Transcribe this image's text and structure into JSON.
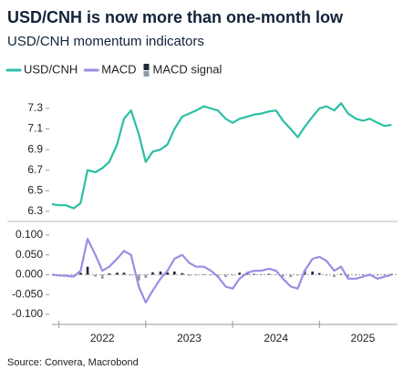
{
  "chart_data": {
    "type": "line",
    "title": "USD/CNH is now more than one-month low",
    "subtitle": "USD/CNH momentum indicators",
    "source": "Source: Convera, Macrobond",
    "x": [
      2021.92,
      2022.0,
      2022.08,
      2022.17,
      2022.25,
      2022.33,
      2022.42,
      2022.5,
      2022.58,
      2022.67,
      2022.75,
      2022.83,
      2022.92,
      2023.0,
      2023.08,
      2023.17,
      2023.25,
      2023.33,
      2023.42,
      2023.5,
      2023.58,
      2023.67,
      2023.75,
      2023.83,
      2023.92,
      2024.0,
      2024.08,
      2024.17,
      2024.25,
      2024.33,
      2024.42,
      2024.5,
      2024.58,
      2024.67,
      2024.75,
      2024.83,
      2024.92,
      2025.0,
      2025.08,
      2025.17,
      2025.25,
      2025.33,
      2025.42,
      2025.5,
      2025.58,
      2025.67,
      2025.75,
      2025.83
    ],
    "xlim": [
      2021.92,
      2025.9
    ],
    "xticks": [
      {
        "value": 2022.5,
        "label": "2022"
      },
      {
        "value": 2023.5,
        "label": "2023"
      },
      {
        "value": 2024.5,
        "label": "2024"
      },
      {
        "value": 2025.5,
        "label": "2025"
      }
    ],
    "xtick_marks": [
      2022,
      2023,
      2024,
      2025
    ],
    "ylim": [
      6.25,
      7.45
    ],
    "yticks": [
      6.3,
      6.5,
      6.7,
      6.9,
      7.1,
      7.3
    ],
    "y2lim": [
      -0.115,
      0.125
    ],
    "y2ticks": [
      {
        "value": -0.1,
        "label": "-0.100"
      },
      {
        "value": -0.05,
        "label": "-0.050"
      },
      {
        "value": 0,
        "label": "0.000"
      },
      {
        "value": 0.05,
        "label": "0.050"
      },
      {
        "value": 0.1,
        "label": "0.100"
      }
    ],
    "series": [
      {
        "name": "USD/CNH",
        "color": "#2bbfa4",
        "values": [
          6.37,
          6.36,
          6.36,
          6.33,
          6.38,
          6.7,
          6.68,
          6.72,
          6.78,
          6.95,
          7.2,
          7.28,
          7.05,
          6.78,
          6.88,
          6.9,
          6.95,
          7.1,
          7.22,
          7.25,
          7.28,
          7.32,
          7.3,
          7.28,
          7.2,
          7.16,
          7.2,
          7.22,
          7.24,
          7.25,
          7.27,
          7.28,
          7.18,
          7.1,
          7.02,
          7.12,
          7.22,
          7.3,
          7.32,
          7.28,
          7.35,
          7.25,
          7.2,
          7.18,
          7.2,
          7.16,
          7.13,
          7.14
        ]
      },
      {
        "name": "MACD",
        "color": "#9d8ce2",
        "axis": "y2",
        "values": [
          0.0,
          -0.002,
          -0.003,
          -0.005,
          0.01,
          0.09,
          0.05,
          0.01,
          0.02,
          0.04,
          0.06,
          0.05,
          -0.03,
          -0.07,
          -0.04,
          -0.01,
          0.01,
          0.04,
          0.05,
          0.03,
          0.02,
          0.02,
          0.01,
          -0.005,
          -0.03,
          -0.035,
          -0.01,
          0.005,
          0.01,
          0.01,
          0.015,
          0.01,
          -0.01,
          -0.03,
          -0.035,
          0.01,
          0.04,
          0.045,
          0.035,
          0.01,
          0.02,
          -0.01,
          -0.01,
          -0.005,
          0.0,
          -0.01,
          -0.005,
          0.0
        ]
      },
      {
        "name": "MACD signal",
        "type": "bar",
        "color": "#1c2a3a",
        "negative_color": "#8c98a3",
        "axis": "y2",
        "values": [
          0,
          0,
          -0.001,
          -0.002,
          0.005,
          0.02,
          -0.005,
          -0.01,
          0.003,
          0.005,
          0.005,
          -0.002,
          -0.015,
          -0.008,
          0.006,
          0.008,
          0.006,
          0.008,
          0.004,
          -0.003,
          -0.002,
          0.001,
          -0.002,
          -0.004,
          -0.006,
          -0.002,
          0.005,
          0.004,
          0.002,
          0.001,
          0.002,
          -0.001,
          -0.005,
          -0.006,
          -0.002,
          0.01,
          0.008,
          0.004,
          -0.002,
          -0.006,
          0.002,
          -0.005,
          -0.002,
          0.001,
          0.002,
          -0.002,
          0.001,
          0.002
        ]
      }
    ]
  }
}
